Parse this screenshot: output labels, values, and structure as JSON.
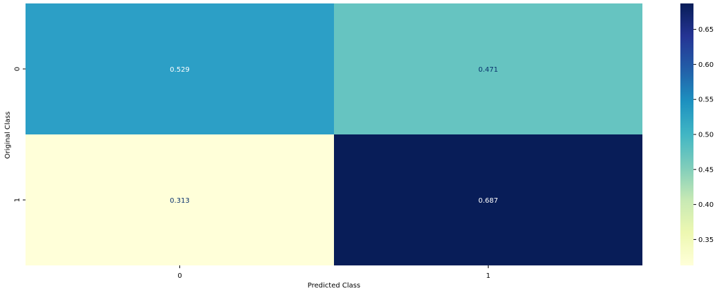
{
  "chart_data": {
    "type": "heatmap",
    "title": "",
    "xlabel": "Predicted Class",
    "ylabel": "Original Class",
    "x_categories": [
      "0",
      "1"
    ],
    "y_categories": [
      "0",
      "1"
    ],
    "values": [
      [
        0.529,
        0.471
      ],
      [
        0.313,
        0.687
      ]
    ],
    "annotations": [
      [
        "0.529",
        "0.471"
      ],
      [
        "0.313",
        "0.687"
      ]
    ],
    "colormap": "YlGnBu",
    "colorbar": {
      "min": 0.313,
      "max": 0.687,
      "ticks": [
        "0.35",
        "0.40",
        "0.45",
        "0.50",
        "0.55",
        "0.60",
        "0.65"
      ]
    },
    "colors": {
      "cell_0_0": "#2c9fc6",
      "cell_0_1": "#66c4c1",
      "cell_1_0": "#ffffd9",
      "cell_1_1": "#081d58"
    }
  }
}
